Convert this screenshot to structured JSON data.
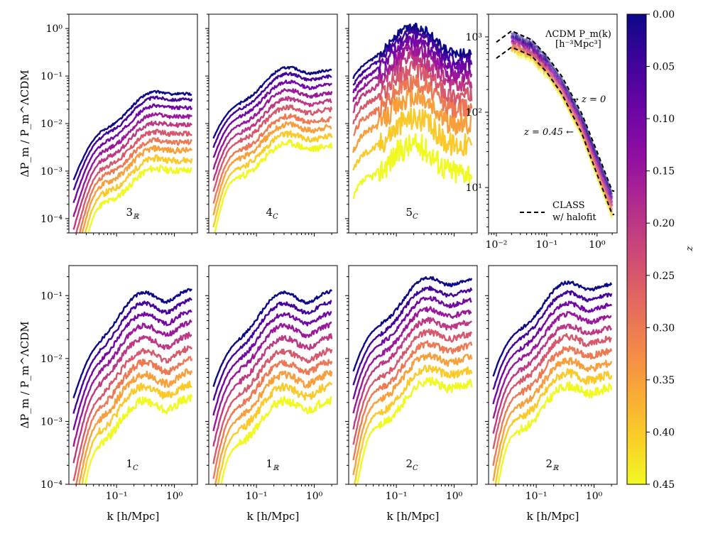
{
  "figure": {
    "ylabel": "ΔP_m / P_m^ΛCDM",
    "xlabel": "k [h/Mpc]",
    "colorbar": {
      "label": "z",
      "ticks": [
        "0.00",
        "0.05",
        "0.10",
        "0.15",
        "0.20",
        "0.25",
        "0.30",
        "0.35",
        "0.40",
        "0.45"
      ],
      "colormap": "plasma",
      "range": [
        0.0,
        0.45
      ]
    },
    "ratio_yticks_top": [
      "10⁰",
      "10⁻¹",
      "10⁻²",
      "10⁻³",
      "10⁻⁴"
    ],
    "ratio_yticks_bottom": [
      "10⁻¹",
      "10⁻²",
      "10⁻³",
      "10⁻⁴"
    ],
    "xticks": [
      "10⁻¹",
      "10⁰"
    ],
    "pk_xticks": [
      "10⁻²",
      "10⁻¹",
      "10⁰"
    ],
    "pk_yticks": [
      "10³",
      "10²",
      "10¹"
    ],
    "pk_annotations": {
      "title_line1": "ΛCDM P_m(k)",
      "title_line2": "[h⁻³Mpc³]",
      "z0": "→ z = 0",
      "z045": "z = 0.45 ←",
      "legend_line1": "CLASS",
      "legend_line2": "w/ halofit"
    }
  },
  "chart_data": [
    {
      "type": "line",
      "panel_label": "3_ℝ",
      "xscale": "log",
      "yscale": "log",
      "xlim": [
        0.015,
        2.5
      ],
      "ylim": [
        5e-05,
        2
      ],
      "z": [
        0.0,
        0.05,
        0.1,
        0.15,
        0.2,
        0.25,
        0.3,
        0.35,
        0.4,
        0.45
      ],
      "peak_ratio": [
        0.045,
        0.034,
        0.023,
        0.015,
        0.01,
        0.0065,
        0.0043,
        0.0029,
        0.0018,
        0.0011
      ],
      "peak_k": 0.45,
      "onset_k": 0.04,
      "high_k_ratio_factor": 0.8
    },
    {
      "type": "line",
      "panel_label": "4_C",
      "xscale": "log",
      "yscale": "log",
      "xlim": [
        0.015,
        2.5
      ],
      "ylim": [
        5e-05,
        2
      ],
      "z": [
        0.0,
        0.05,
        0.1,
        0.15,
        0.2,
        0.25,
        0.3,
        0.35,
        0.4,
        0.45
      ],
      "peak_ratio": [
        0.15,
        0.11,
        0.075,
        0.05,
        0.033,
        0.022,
        0.014,
        0.0095,
        0.006,
        0.0038
      ],
      "peak_k": 0.35,
      "onset_k": 0.03,
      "high_k_ratio_factor": 0.8
    },
    {
      "type": "line",
      "panel_label": "5_C",
      "xscale": "log",
      "yscale": "log",
      "xlim": [
        0.015,
        2.5
      ],
      "ylim": [
        5e-05,
        2
      ],
      "z": [
        0.0,
        0.05,
        0.1,
        0.15,
        0.2,
        0.25,
        0.3,
        0.35,
        0.4,
        0.45
      ],
      "peak_ratio": [
        1.1,
        0.8,
        0.55,
        0.37,
        0.24,
        0.14,
        0.075,
        0.035,
        0.013,
        0.0035
      ],
      "peak_k": 0.2,
      "onset_k": 0.02,
      "high_k_ratio_factor": 0.1
    },
    {
      "type": "line",
      "panel_label": "ΛCDM P_m(k)",
      "xscale": "log",
      "yscale": "log",
      "xlim": [
        0.007,
        2.5
      ],
      "ylim": [
        2.5,
        2000
      ],
      "z": [
        0.0,
        0.45
      ],
      "class_halofit_z0": {
        "x": [
          0.01,
          0.02,
          0.05,
          0.1,
          0.2,
          0.5,
          1.0,
          2.0
        ],
        "y": [
          850,
          1200,
          920,
          560,
          300,
          95,
          30,
          9
        ]
      },
      "class_halofit_z045": {
        "x": [
          0.01,
          0.02,
          0.05,
          0.1,
          0.2,
          0.5,
          1.0,
          2.0
        ],
        "y": [
          520,
          730,
          560,
          340,
          175,
          52,
          15,
          4.4
        ]
      }
    },
    {
      "type": "line",
      "panel_label": "1_C",
      "xscale": "log",
      "yscale": "log",
      "xlim": [
        0.015,
        2.5
      ],
      "ylim": [
        0.0001,
        0.3
      ],
      "z": [
        0.0,
        0.05,
        0.1,
        0.15,
        0.2,
        0.25,
        0.3,
        0.35,
        0.4,
        0.45
      ],
      "peak_ratio": [
        0.11,
        0.075,
        0.05,
        0.033,
        0.021,
        0.013,
        0.0085,
        0.0055,
        0.0035,
        0.0021
      ],
      "peak_k": 0.3,
      "onset_k": 0.035,
      "high_k_ratio_factor": 1.1
    },
    {
      "type": "line",
      "panel_label": "1_ℝ",
      "xscale": "log",
      "yscale": "log",
      "xlim": [
        0.015,
        2.5
      ],
      "ylim": [
        0.0001,
        0.3
      ],
      "z": [
        0.0,
        0.05,
        0.1,
        0.15,
        0.2,
        0.25,
        0.3,
        0.35,
        0.4,
        0.45
      ],
      "peak_ratio": [
        0.11,
        0.075,
        0.05,
        0.033,
        0.021,
        0.013,
        0.0085,
        0.0055,
        0.0035,
        0.0021
      ],
      "peak_k": 0.3,
      "onset_k": 0.03,
      "high_k_ratio_factor": 1.0
    },
    {
      "type": "line",
      "panel_label": "2_C",
      "xscale": "log",
      "yscale": "log",
      "xlim": [
        0.015,
        2.5
      ],
      "ylim": [
        0.0001,
        0.3
      ],
      "z": [
        0.0,
        0.05,
        0.1,
        0.15,
        0.2,
        0.25,
        0.3,
        0.35,
        0.4,
        0.45
      ],
      "peak_ratio": [
        0.19,
        0.13,
        0.09,
        0.06,
        0.04,
        0.026,
        0.017,
        0.011,
        0.007,
        0.0043
      ],
      "peak_k": 0.35,
      "onset_k": 0.03,
      "high_k_ratio_factor": 0.85
    },
    {
      "type": "line",
      "panel_label": "2_ℝ",
      "xscale": "log",
      "yscale": "log",
      "xlim": [
        0.015,
        2.5
      ],
      "ylim": [
        0.0001,
        0.3
      ],
      "z": [
        0.0,
        0.05,
        0.1,
        0.15,
        0.2,
        0.25,
        0.3,
        0.35,
        0.4,
        0.45
      ],
      "peak_ratio": [
        0.16,
        0.11,
        0.075,
        0.05,
        0.033,
        0.022,
        0.014,
        0.009,
        0.0058,
        0.0036
      ],
      "peak_k": 0.35,
      "onset_k": 0.03,
      "high_k_ratio_factor": 0.85
    }
  ]
}
